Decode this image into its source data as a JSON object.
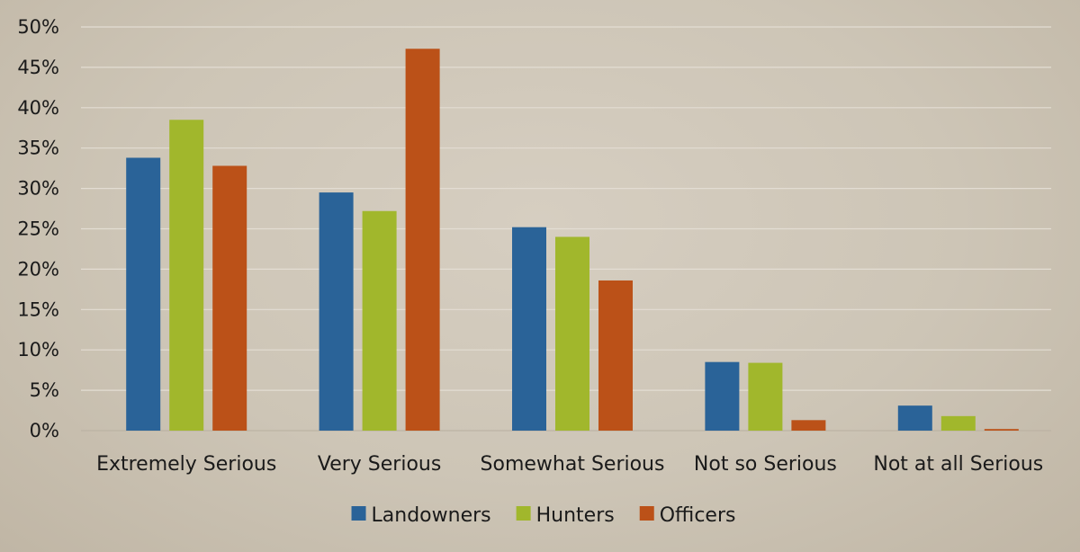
{
  "chart_data": {
    "type": "bar",
    "title": "",
    "xlabel": "",
    "ylabel": "",
    "categories": [
      "Extremely Serious",
      "Very Serious",
      "Somewhat Serious",
      "Not so Serious",
      "Not at all Serious"
    ],
    "series": [
      {
        "name": "Landowners",
        "color": "#2a6398",
        "values": [
          33.8,
          29.5,
          25.2,
          8.5,
          3.1
        ]
      },
      {
        "name": "Hunters",
        "color": "#a1b72c",
        "values": [
          38.5,
          27.2,
          24.0,
          8.4,
          1.8
        ]
      },
      {
        "name": "Officers",
        "color": "#bb5118",
        "values": [
          32.8,
          47.3,
          18.6,
          1.3,
          0.2
        ]
      }
    ],
    "yticks": [
      "0%",
      "5%",
      "10%",
      "15%",
      "20%",
      "25%",
      "30%",
      "35%",
      "40%",
      "45%",
      "50%"
    ],
    "ylim": [
      0,
      50
    ],
    "grid": true,
    "legend_position": "bottom"
  }
}
